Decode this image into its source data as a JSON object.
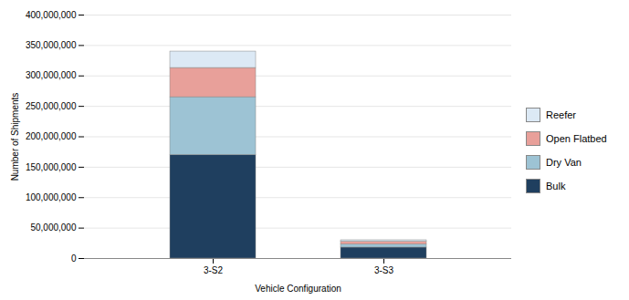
{
  "chart_data": {
    "type": "bar",
    "stacked": true,
    "categories": [
      "3-S2",
      "3-S3"
    ],
    "series": [
      {
        "name": "Bulk",
        "values": [
          170000000,
          18000000
        ],
        "color": "#1f3f5f"
      },
      {
        "name": "Dry Van",
        "values": [
          95000000,
          5000000
        ],
        "color": "#9dc3d4"
      },
      {
        "name": "Open Flatbed",
        "values": [
          48000000,
          4500000
        ],
        "color": "#e8a09a"
      },
      {
        "name": "Reefer",
        "values": [
          27000000,
          2500000
        ],
        "color": "#dce9f5"
      }
    ],
    "xlabel": "Vehicle Configuration",
    "ylabel": "Number of Shipments",
    "ylim": [
      0,
      400000000
    ],
    "yticks": [
      0,
      {
        "value": 50000000,
        "label": "50,000,000"
      },
      {
        "value": 100000000,
        "label": "100,000,000"
      },
      {
        "value": 150000000,
        "label": "150,000,000"
      },
      {
        "value": 200000000,
        "label": "200,000,000"
      },
      {
        "value": 250000000,
        "label": "250,000,000"
      },
      {
        "value": 300000000,
        "label": "300,000,000"
      },
      {
        "value": 350000000,
        "label": "350,000,000"
      },
      {
        "value": 400000000,
        "label": "400,000,000"
      }
    ],
    "grid": true,
    "legend": "right"
  }
}
